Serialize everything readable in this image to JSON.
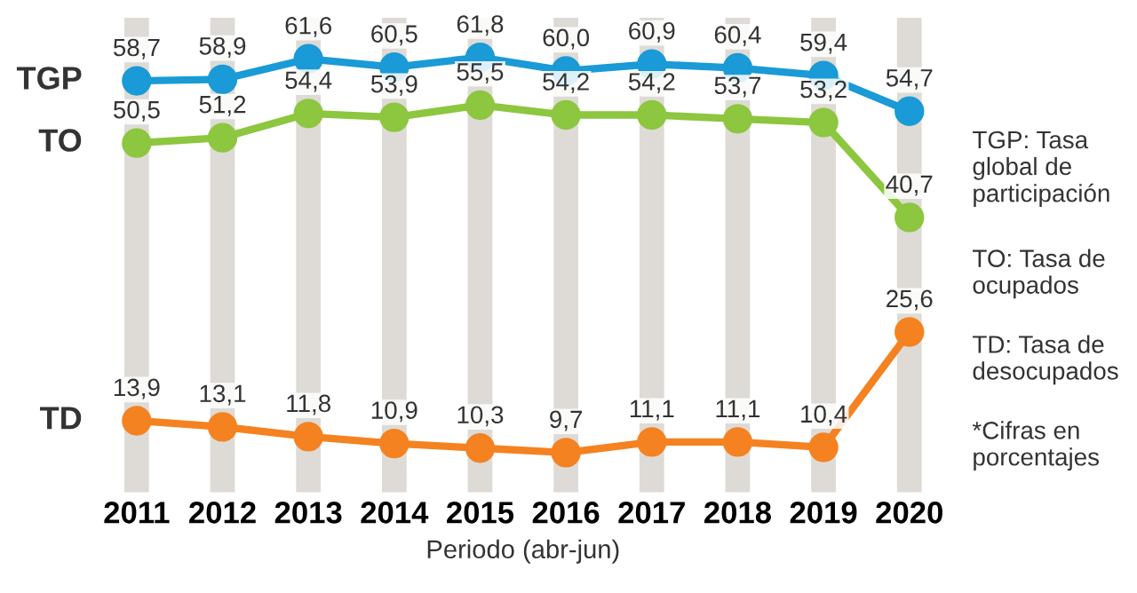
{
  "chart_data": {
    "type": "line",
    "xlabel": "Periodo (abr-jun)",
    "categories": [
      "2011",
      "2012",
      "2013",
      "2014",
      "2015",
      "2016",
      "2017",
      "2018",
      "2019",
      "2020"
    ],
    "series": [
      {
        "name": "TGP",
        "color": "#1a9ad6",
        "values": [
          58.7,
          58.9,
          61.6,
          60.5,
          61.8,
          60.0,
          60.9,
          60.4,
          59.4,
          54.7
        ],
        "value_labels": [
          "58,7",
          "58,9",
          "61,6",
          "60,5",
          "61,8",
          "60,0",
          "60,9",
          "60,4",
          "59,4",
          "54,7"
        ]
      },
      {
        "name": "TO",
        "color": "#8dc63f",
        "values": [
          50.5,
          51.2,
          54.4,
          53.9,
          55.5,
          54.2,
          54.2,
          53.7,
          53.2,
          40.7
        ],
        "value_labels": [
          "50,5",
          "51,2",
          "54,4",
          "53,9",
          "55,5",
          "54,2",
          "54,2",
          "53,7",
          "53,2",
          "40,7"
        ]
      },
      {
        "name": "TD",
        "color": "#f58220",
        "values": [
          13.9,
          13.1,
          11.8,
          10.9,
          10.3,
          9.7,
          11.1,
          11.1,
          10.4,
          25.6
        ],
        "value_labels": [
          "13,9",
          "13,1",
          "11,8",
          "10,9",
          "10,3",
          "9,7",
          "11,1",
          "11,1",
          "10,4",
          "25,6"
        ]
      }
    ],
    "annotations": [
      "TGP: Tasa global de participación",
      "TO: Tasa de ocupados",
      "TD: Tasa de desocupados",
      "*Cifras en porcentajes"
    ],
    "grid": "x",
    "marker": "circle",
    "line_style": "solid",
    "legend": false
  }
}
